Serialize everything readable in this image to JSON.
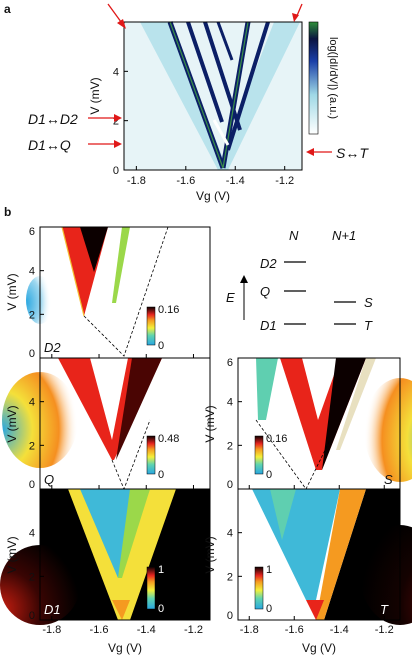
{
  "figure": {
    "panel_a_letter": "a",
    "panel_b_letter": "b"
  },
  "panel_a": {
    "ylabel": "V (mV)",
    "xlabel": "Vg (V)",
    "x_ticks": [
      "-1.8",
      "-1.6",
      "-1.4",
      "-1.2"
    ],
    "y_ticks": [
      "0",
      "2",
      "4"
    ],
    "colorbar_label": "log(|dI/dV|) (a.u.)",
    "annotations": {
      "d1_d2": "D1↔D2",
      "d1_q": "D1↔Q",
      "s_t": "S↔T"
    }
  },
  "level_diagram": {
    "col_n": "N",
    "col_n1": "N+1",
    "energy_label": "E",
    "levels_n": [
      "D2",
      "Q",
      "D1"
    ],
    "levels_n1": [
      "S",
      "T"
    ]
  },
  "chart_data": [
    {
      "type": "heatmap",
      "panel": "a",
      "x_range": [
        -1.85,
        -1.13
      ],
      "y_range": [
        0,
        6
      ],
      "xlabel": "Vg (V)",
      "ylabel": "V (mV)",
      "x_ticks": [
        -1.8,
        -1.6,
        -1.4,
        -1.2
      ],
      "y_ticks": [
        0,
        2,
        4
      ],
      "features": {
        "dirac_vertex_vg": -1.45,
        "annotated_bias_mV": {
          "D1↔D2": 2.0,
          "D1↔Q": 1.1,
          "S↔T": 0.8
        }
      },
      "colorbar": {
        "label": "log(|dI/dV|) (a.u.)",
        "scale": "log"
      }
    },
    {
      "type": "heatmap",
      "panel": "D2",
      "label": "D2",
      "x_range": [
        -1.85,
        -1.13
      ],
      "y_range": [
        0,
        6
      ],
      "y_ticks": [
        0,
        2,
        4,
        6
      ],
      "colorbar": {
        "min": "0",
        "max": "0.16"
      }
    },
    {
      "type": "heatmap",
      "panel": "Q",
      "label": "Q",
      "x_range": [
        -1.85,
        -1.13
      ],
      "y_range": [
        0,
        6
      ],
      "y_ticks": [
        0,
        2,
        4
      ],
      "colorbar": {
        "min": "0",
        "max": "0.48"
      }
    },
    {
      "type": "heatmap",
      "panel": "D1",
      "label": "D1",
      "x_range": [
        -1.85,
        -1.13
      ],
      "y_range": [
        0,
        6
      ],
      "x_ticks": [
        -1.8,
        -1.6,
        -1.4,
        -1.2
      ],
      "y_ticks": [
        0,
        2,
        4
      ],
      "colorbar": {
        "min": "0",
        "max": "1"
      }
    },
    {
      "type": "heatmap",
      "panel": "S",
      "label": "S",
      "x_range": [
        -1.85,
        -1.13
      ],
      "y_range": [
        0,
        6
      ],
      "y_ticks": [
        0,
        2,
        4,
        6
      ],
      "colorbar": {
        "min": "0",
        "max": "0.16"
      }
    },
    {
      "type": "heatmap",
      "panel": "T",
      "label": "T",
      "x_range": [
        -1.85,
        -1.13
      ],
      "y_range": [
        0,
        6
      ],
      "x_ticks": [
        -1.8,
        -1.6,
        -1.4,
        -1.2
      ],
      "y_ticks": [
        0,
        2,
        4
      ],
      "colorbar": {
        "min": "0",
        "max": "1"
      }
    }
  ],
  "panel_b": {
    "ylabel": "V (mV)",
    "xlabel": "Vg (V)",
    "x_ticks": [
      "-1.8",
      "-1.6",
      "-1.4",
      "-1.2"
    ],
    "y_ticks_top": [
      "0",
      "2",
      "4",
      "6"
    ],
    "y_ticks": [
      "0",
      "2",
      "4"
    ],
    "labels": {
      "d2": "D2",
      "q": "Q",
      "d1": "D1",
      "s": "S",
      "t": "T"
    },
    "cbar": {
      "d2_max": "0.16",
      "d2_min": "0",
      "q_max": "0.48",
      "q_min": "0",
      "d1_max": "1",
      "d1_min": "0",
      "s_max": "0.16",
      "s_min": "0",
      "t_max": "1",
      "t_min": "0"
    }
  }
}
